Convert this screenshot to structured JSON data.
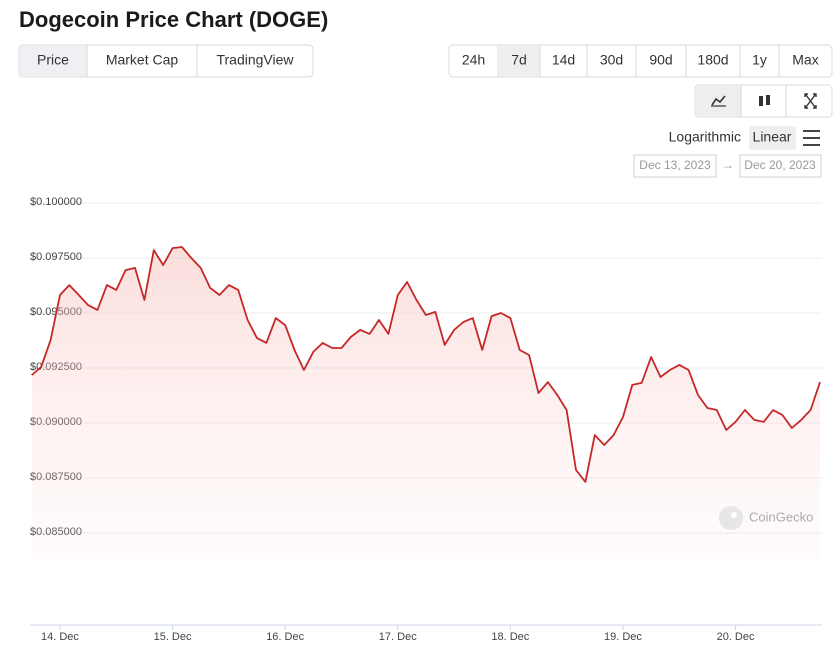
{
  "header": {
    "title": "Dogecoin Price Chart (DOGE)"
  },
  "tabs": [
    "Price",
    "Market Cap",
    "TradingView"
  ],
  "ranges": [
    "24h",
    "7d",
    "14d",
    "30d",
    "90d",
    "180d",
    "1y",
    "Max"
  ],
  "scale_options": [
    "Logarithmic",
    "Linear"
  ],
  "date_range": {
    "from": "Dec 13, 2023",
    "separator": "→",
    "to": "Dec 20, 2023"
  },
  "watermark": "CoinGecko",
  "chart_data": {
    "type": "line",
    "categories": [
      null,
      null,
      null,
      "14. Dec",
      null,
      null,
      null,
      null,
      null,
      null,
      null,
      null,
      null,
      null,
      null,
      "15. Dec",
      null,
      null,
      null,
      null,
      null,
      null,
      null,
      null,
      null,
      null,
      null,
      "16. Dec",
      null,
      null,
      null,
      null,
      null,
      null,
      null,
      null,
      null,
      null,
      null,
      "17. Dec",
      null,
      null,
      null,
      null,
      null,
      null,
      null,
      null,
      null,
      null,
      null,
      "18. Dec",
      null,
      null,
      null,
      null,
      null,
      null,
      null,
      null,
      null,
      null,
      null,
      "19. Dec",
      null,
      null,
      null,
      null,
      null,
      null,
      null,
      null,
      null,
      null,
      null,
      "20. Dec",
      null,
      null,
      null,
      null,
      null,
      null,
      null,
      null,
      null
    ],
    "series": [
      {
        "name": "Price",
        "color": "#c62828",
        "values": [
          0.09218,
          0.09255,
          0.09377,
          0.09582,
          0.09627,
          0.09582,
          0.09536,
          0.09514,
          0.09627,
          0.09605,
          0.09695,
          0.09705,
          0.09559,
          0.09786,
          0.09718,
          0.09795,
          0.098,
          0.0975,
          0.09705,
          0.09614,
          0.09582,
          0.09627,
          0.09605,
          0.09468,
          0.09386,
          0.09364,
          0.09477,
          0.09445,
          0.09332,
          0.09241,
          0.09323,
          0.09364,
          0.09341,
          0.09341,
          0.09391,
          0.09423,
          0.09405,
          0.09468,
          0.09405,
          0.09582,
          0.09641,
          0.09559,
          0.09491,
          0.09505,
          0.09355,
          0.09423,
          0.09459,
          0.09477,
          0.09332,
          0.09486,
          0.095,
          0.09477,
          0.09332,
          0.09309,
          0.09136,
          0.09186,
          0.09127,
          0.09059,
          0.08786,
          0.08732,
          0.08945,
          0.089,
          0.08945,
          0.09027,
          0.09173,
          0.09182,
          0.093,
          0.09209,
          0.09241,
          0.09264,
          0.09241,
          0.09127,
          0.09068,
          0.09059,
          0.08968,
          0.09005,
          0.09059,
          0.09014,
          0.09005,
          0.09059,
          0.09036,
          0.08977,
          0.09014,
          0.09059,
          0.09186
        ]
      }
    ],
    "ylim": [
      0.08377,
      0.10082
    ],
    "yticks": [
      {
        "value": 0.1,
        "label": "$0.100000"
      },
      {
        "value": 0.0975,
        "label": "$0.097500"
      },
      {
        "value": 0.095,
        "label": "$0.095000"
      },
      {
        "value": 0.0925,
        "label": "$0.092500"
      },
      {
        "value": 0.09,
        "label": "$0.090000"
      },
      {
        "value": 0.0875,
        "label": "$0.087500"
      },
      {
        "value": 0.085,
        "label": "$0.085000"
      }
    ],
    "grid": true
  }
}
